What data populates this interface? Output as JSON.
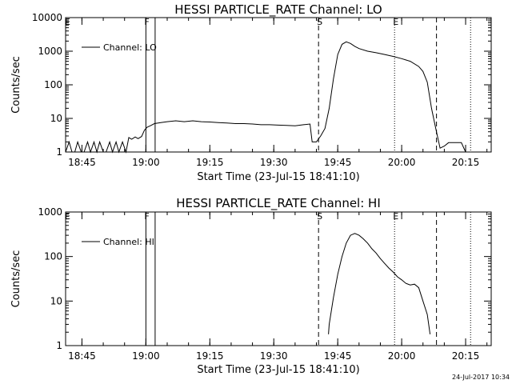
{
  "chart_data": [
    {
      "type": "line",
      "title": "HESSI PARTICLE_RATE Channel: LO",
      "xlabel": "Start Time (23-Jul-15 18:41:10)",
      "ylabel": "Counts/sec",
      "yscale": "log",
      "ylim": [
        1,
        10000
      ],
      "xlim": [
        "18:41:10",
        "20:21:00"
      ],
      "x_ticks": [
        "18:45",
        "19:00",
        "19:15",
        "19:30",
        "19:45",
        "20:00",
        "20:15"
      ],
      "y_ticks": [
        "1",
        "10",
        "100",
        "1000",
        "10000"
      ],
      "legend": "top-left",
      "grid": false,
      "flags": [
        {
          "label": "F",
          "time": "19:00:00",
          "style": "solid"
        },
        {
          "label": "",
          "time": "19:02:10",
          "style": "solid"
        },
        {
          "label": "S",
          "time": "19:40:30",
          "style": "dashed"
        },
        {
          "label": "E",
          "time": "19:58:20",
          "style": "dotted"
        },
        {
          "label": "",
          "time": "20:08:10",
          "style": "dashed"
        },
        {
          "label": "",
          "time": "20:16:10",
          "style": "dotted"
        }
      ],
      "corner_label": "E",
      "series": [
        {
          "name": "Channel: LO",
          "x": [
            "18:41:10",
            "18:42:00",
            "18:42:40",
            "18:43:20",
            "18:44:00",
            "18:44:50",
            "18:45:30",
            "18:46:20",
            "18:47:00",
            "18:47:50",
            "18:48:30",
            "18:49:10",
            "18:50:00",
            "18:50:40",
            "18:51:30",
            "18:52:10",
            "18:53:00",
            "18:53:40",
            "18:54:30",
            "18:55:20",
            "18:56:00",
            "18:56:40",
            "18:57:30",
            "18:58:10",
            "18:59:00",
            "18:59:40",
            "19:00:20",
            "19:01:00",
            "19:02:00",
            "19:03:30",
            "19:05:00",
            "19:07:00",
            "19:09:00",
            "19:11:00",
            "19:13:00",
            "19:15:00",
            "19:17:00",
            "19:19:00",
            "19:21:00",
            "19:23:00",
            "19:25:00",
            "19:27:00",
            "19:29:00",
            "19:31:00",
            "19:33:00",
            "19:35:00",
            "19:37:00",
            "19:38:30",
            "19:39:00",
            "19:40:00",
            "19:41:00",
            "19:42:00",
            "19:43:00",
            "19:44:00",
            "19:45:00",
            "19:46:00",
            "19:47:00",
            "19:48:00",
            "19:49:00",
            "19:50:00",
            "19:52:00",
            "19:54:00",
            "19:56:00",
            "19:58:00",
            "20:00:00",
            "20:02:00",
            "20:04:00",
            "20:05:00",
            "20:06:00",
            "20:07:00",
            "20:08:00",
            "20:09:00",
            "20:10:00",
            "20:11:00",
            "20:12:00",
            "20:13:00",
            "20:14:00",
            "20:15:00",
            "20:16:00"
          ],
          "y": [
            1,
            2,
            1,
            1,
            2,
            1,
            1,
            2,
            1,
            2,
            1,
            2,
            1,
            1,
            2,
            1,
            2,
            1,
            2,
            1,
            2.7,
            2.4,
            2.8,
            2.5,
            2.9,
            4.5,
            5.5,
            6,
            7,
            7.5,
            8,
            8.5,
            8,
            8.5,
            8,
            7.8,
            7.5,
            7.3,
            7,
            7,
            6.8,
            6.5,
            6.5,
            6.3,
            6.2,
            6,
            6.5,
            6.8,
            2,
            2,
            3,
            5,
            20,
            150,
            800,
            1600,
            1900,
            1700,
            1400,
            1200,
            1000,
            900,
            800,
            700,
            600,
            500,
            350,
            250,
            120,
            20,
            5,
            1.3,
            1.5,
            1.9,
            1.9,
            1.9,
            1.9,
            1,
            1
          ]
        }
      ]
    },
    {
      "type": "line",
      "title": "HESSI PARTICLE_RATE Channel: HI",
      "xlabel": "Start Time (23-Jul-15 18:41:10)",
      "ylabel": "Counts/sec",
      "yscale": "log",
      "ylim": [
        1,
        1000
      ],
      "xlim": [
        "18:41:10",
        "20:21:00"
      ],
      "x_ticks": [
        "18:45",
        "19:00",
        "19:15",
        "19:30",
        "19:45",
        "20:00",
        "20:15"
      ],
      "y_ticks": [
        "1",
        "10",
        "100",
        "1000"
      ],
      "legend": "top-left",
      "grid": false,
      "flags": [
        {
          "label": "F",
          "time": "19:00:00",
          "style": "solid"
        },
        {
          "label": "",
          "time": "19:02:10",
          "style": "solid"
        },
        {
          "label": "S",
          "time": "19:40:30",
          "style": "dashed"
        },
        {
          "label": "E",
          "time": "19:58:20",
          "style": "dotted"
        },
        {
          "label": "",
          "time": "20:08:10",
          "style": "dashed"
        },
        {
          "label": "",
          "time": "20:16:10",
          "style": "dotted"
        }
      ],
      "corner_label": "E",
      "series": [
        {
          "name": "Channel: HI",
          "x": [
            "19:42:50",
            "19:43:00",
            "19:44:00",
            "19:45:00",
            "19:46:00",
            "19:47:00",
            "19:48:00",
            "19:49:00",
            "19:50:00",
            "19:51:00",
            "19:52:00",
            "19:53:00",
            "19:54:00",
            "19:55:00",
            "19:56:00",
            "19:57:00",
            "19:58:00",
            "19:59:00",
            "20:00:00",
            "20:01:00",
            "20:02:00",
            "20:03:00",
            "20:04:00",
            "20:05:00",
            "20:06:00",
            "20:06:40"
          ],
          "y": [
            1.8,
            3,
            12,
            40,
            100,
            200,
            300,
            330,
            300,
            250,
            200,
            150,
            120,
            90,
            70,
            55,
            45,
            35,
            30,
            25,
            23,
            24,
            20,
            10,
            5,
            1.8
          ]
        }
      ]
    }
  ],
  "timestamp": "24-Jul-2017 10:34"
}
